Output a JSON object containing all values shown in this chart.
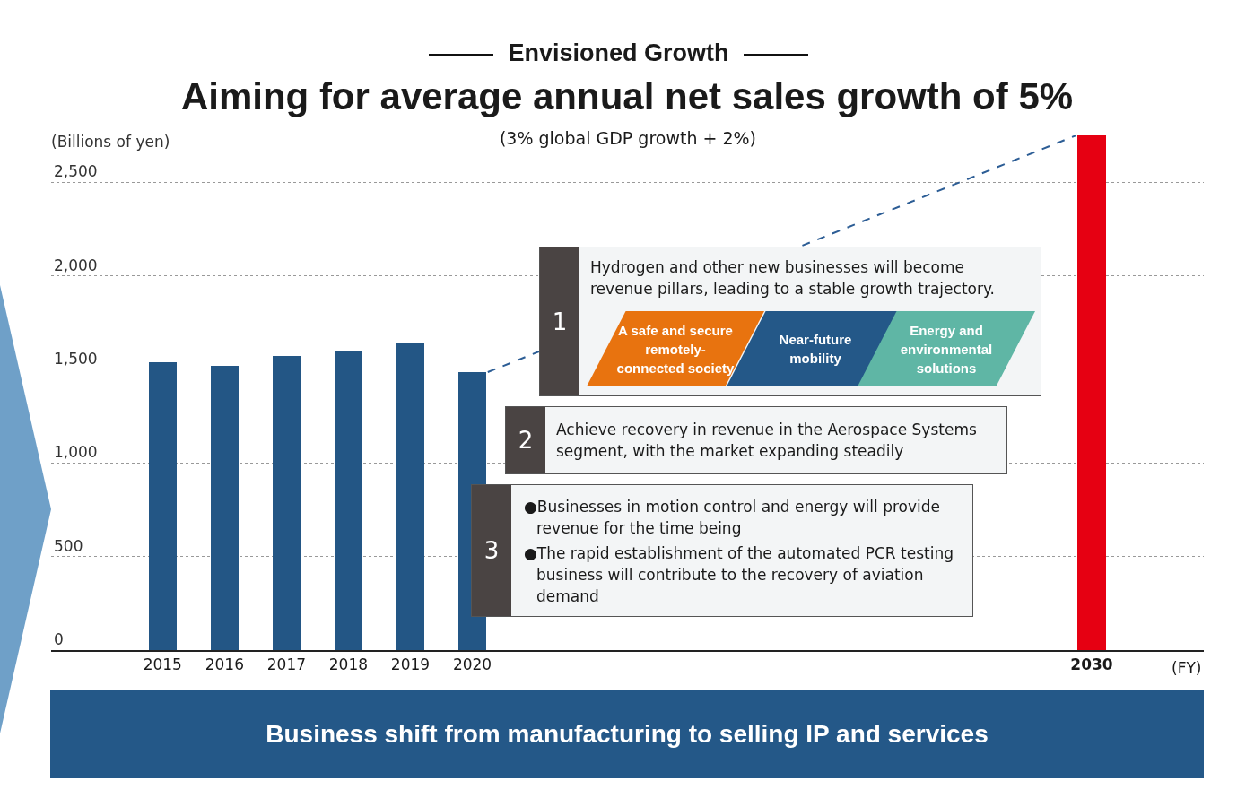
{
  "chart_data": {
    "type": "bar",
    "title": "Envisioned Growth",
    "subtitle": "Aiming for average annual net sales growth of 5%",
    "ylabel": "(Billions of yen)",
    "xlabel": "(FY)",
    "x": [
      2015,
      2016,
      2017,
      2018,
      2019,
      2020,
      2030
    ],
    "values": [
      1540,
      1520,
      1573,
      1597,
      1640,
      1485,
      2750
    ],
    "colors": [
      "#235685",
      "#235685",
      "#235685",
      "#235685",
      "#235685",
      "#235685",
      "#e60012"
    ],
    "series": [
      {
        "type": "line",
        "x": [
          2020.25,
          2029.75
        ],
        "values": [
          1485,
          2750
        ],
        "color": "#2c5d95",
        "line_style": "dashed"
      }
    ],
    "xlim": [
      2013.2,
      2031.81
    ],
    "xticks": [
      2015,
      2016,
      2017,
      2018,
      2019,
      2020,
      2030
    ],
    "ylim": [
      0,
      2750
    ],
    "yticks": [
      0,
      500,
      {
        "value": 1000,
        "label": "1,000"
      },
      {
        "value": 1500,
        "label": "1,500"
      },
      {
        "value": 2000,
        "label": "2,000"
      },
      {
        "value": 2500,
        "label": "2,500"
      }
    ],
    "grid": "y",
    "annotations": [
      "(3% global GDP growth + 2%)",
      "1",
      "Hydrogen and other new businesses will become revenue pillars, leading to a stable growth trajectory.",
      "A safe and secure remotely-connected society",
      "Near-future mobility",
      "Energy and environmental solutions",
      "2",
      "Achieve recovery in revenue in the Aerospace Systems segment, with the market expanding steadily",
      "3",
      "●Businesses in motion control and energy will provide revenue for the time being",
      "●The rapid establishment of the automated PCR testing business will contribute to the recovery of aviation demand",
      "Business shift from manufacturing to selling IP and services"
    ]
  }
}
